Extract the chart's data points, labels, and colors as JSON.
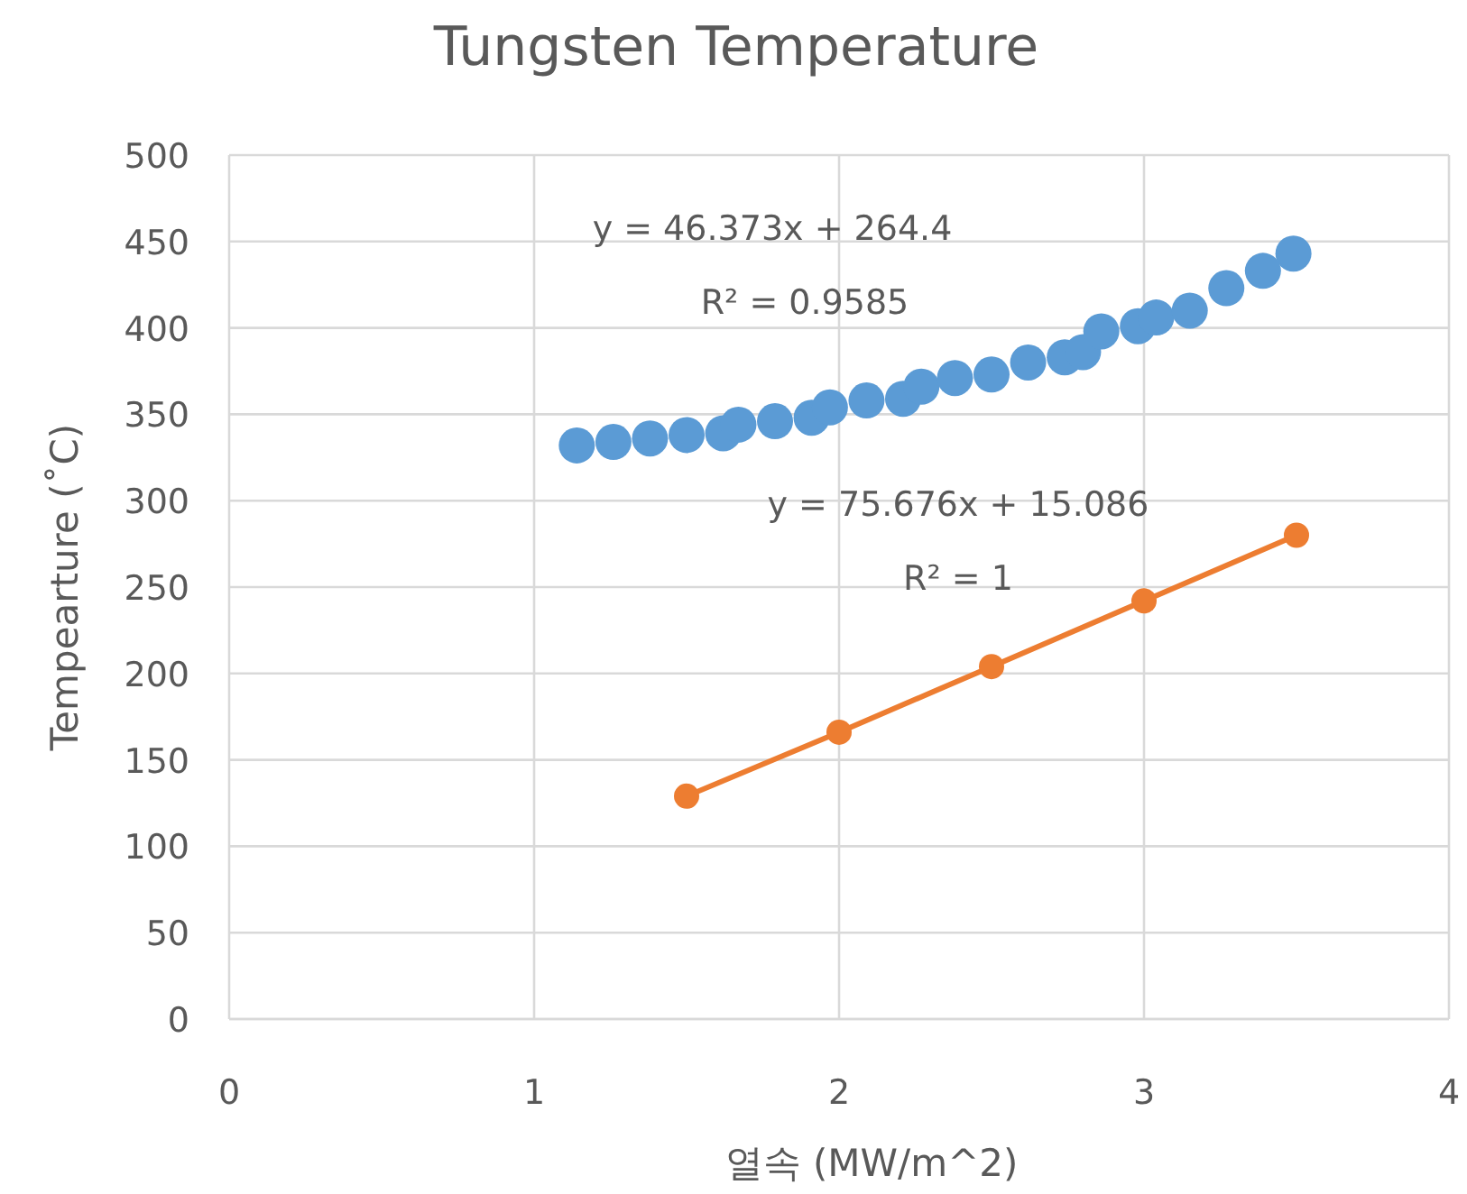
{
  "chart_data": {
    "type": "scatter",
    "title": "Tungsten Temperature",
    "xlabel": "열속 (MW/m^2)",
    "ylabel": "Tempearture (˚C)",
    "xlim": [
      0,
      4
    ],
    "xticks": [
      0,
      1,
      2,
      3,
      4
    ],
    "ylim": [
      0,
      500
    ],
    "yticks": [
      0,
      50,
      100,
      150,
      200,
      250,
      300,
      350,
      400,
      450,
      500
    ],
    "grid": true,
    "marker": "circle",
    "annotations": [
      "y = 46.373x + 264.4",
      "R² = 0.9585",
      "y = 75.676x + 15.086",
      "R² = 1"
    ],
    "series": [
      {
        "color": "#5b9bd5",
        "x": [
          1.14,
          1.26,
          1.38,
          1.5,
          1.62,
          1.67,
          1.79,
          1.91,
          1.97,
          2.09,
          2.21,
          2.27,
          2.38,
          2.5,
          2.62,
          2.74,
          2.8,
          2.86,
          2.98,
          3.04,
          3.15,
          3.27,
          3.39,
          3.49
        ],
        "values": [
          332,
          334,
          336,
          338,
          339,
          344,
          346,
          348,
          354,
          358,
          359,
          366,
          371,
          373,
          380,
          383,
          386,
          398,
          401,
          406,
          410,
          423,
          433,
          443
        ]
      },
      {
        "type": "line",
        "color": "#ed7d31",
        "x": [
          1.5,
          2,
          2.5,
          3,
          3.5
        ],
        "values": [
          129,
          166,
          204,
          242,
          280
        ]
      }
    ]
  }
}
